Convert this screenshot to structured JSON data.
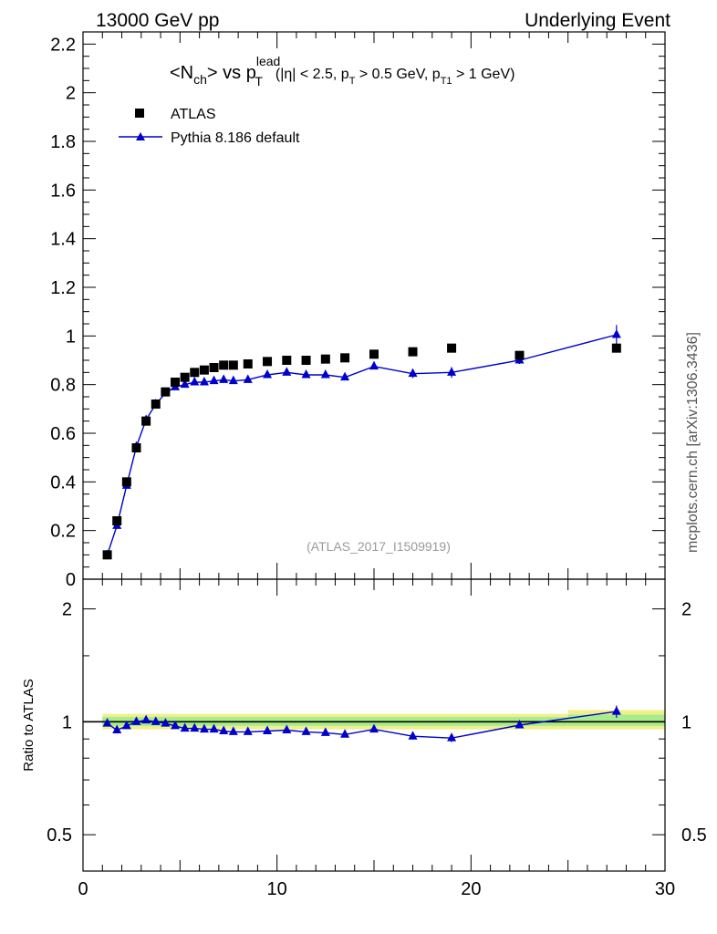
{
  "header": {
    "left_label": "13000 GeV pp",
    "right_label": "Underlying Event",
    "side_label": "mcplots.cern.ch [arXiv:1306.3436]",
    "analysis_label": "(ATLAS_2017_I1509919)"
  },
  "title": {
    "obs_open": "<N",
    "obs_sub": "ch",
    "obs_close": "> vs p",
    "pt_sup": "lead",
    "pt_sub": "T",
    "cuts_a": "(|η| < 2.5, p",
    "cuts_a_sub": "T",
    "cuts_b": " > 0.5 GeV, p",
    "cuts_b_sub": "T1",
    "cuts_c": " > 1 GeV)"
  },
  "colors": {
    "data": "#000000",
    "mc": "#0000cc",
    "band_yellow": "#f0f08a",
    "band_green": "#a8ec8c"
  },
  "chart_data": [
    {
      "type": "scatter",
      "panel": "main",
      "xlim": [
        0,
        30
      ],
      "ylim": [
        0,
        2.25
      ],
      "y_ticks": [
        0,
        0.2,
        0.4,
        0.6,
        0.8,
        1,
        1.2,
        1.4,
        1.6,
        1.8,
        2,
        2.2
      ],
      "y_tick_labels": [
        "0",
        "0.2",
        "0.4",
        "0.6",
        "0.8",
        "1",
        "1.2",
        "1.4",
        "1.6",
        "1.8",
        "2",
        "2.2"
      ],
      "legend_position": "top-left",
      "grid": false,
      "series": [
        {
          "name": "ATLAS",
          "marker": "square",
          "x": [
            1.25,
            1.75,
            2.25,
            2.75,
            3.25,
            3.75,
            4.25,
            4.75,
            5.25,
            5.75,
            6.25,
            6.75,
            7.25,
            7.75,
            8.5,
            9.5,
            10.5,
            11.5,
            12.5,
            13.5,
            15.0,
            17.0,
            19.0,
            22.5,
            27.5
          ],
          "y": [
            0.1,
            0.24,
            0.4,
            0.54,
            0.65,
            0.72,
            0.77,
            0.81,
            0.83,
            0.85,
            0.86,
            0.87,
            0.88,
            0.88,
            0.885,
            0.895,
            0.9,
            0.9,
            0.905,
            0.91,
            0.925,
            0.935,
            0.95,
            0.92,
            0.95
          ]
        },
        {
          "name": "Pythia 8.186 default",
          "marker": "triangle",
          "x": [
            1.25,
            1.75,
            2.25,
            2.75,
            3.25,
            3.75,
            4.25,
            4.75,
            5.25,
            5.75,
            6.25,
            6.75,
            7.25,
            7.75,
            8.5,
            9.5,
            10.5,
            11.5,
            12.5,
            13.5,
            15.0,
            17.0,
            19.0,
            22.5,
            27.5
          ],
          "y": [
            0.1,
            0.22,
            0.385,
            0.545,
            0.655,
            0.72,
            0.765,
            0.79,
            0.8,
            0.81,
            0.81,
            0.815,
            0.82,
            0.815,
            0.82,
            0.84,
            0.85,
            0.84,
            0.84,
            0.83,
            0.875,
            0.845,
            0.85,
            0.9,
            1.005
          ],
          "yerr": [
            0,
            0,
            0,
            0,
            0,
            0,
            0,
            0,
            0,
            0,
            0,
            0,
            0,
            0,
            0,
            0,
            0.012,
            0,
            0,
            0,
            0.012,
            0.018,
            0.022,
            0.015,
            0.04
          ]
        }
      ]
    },
    {
      "type": "scatter",
      "panel": "ratio",
      "ylabel": "Ratio to ATLAS",
      "log_y": true,
      "xlim": [
        0,
        30
      ],
      "ylim": [
        0.4,
        2.4
      ],
      "x_ticks": [
        0,
        10,
        20,
        30
      ],
      "x_tick_labels": [
        "0",
        "10",
        "20",
        "30"
      ],
      "y_ticks": [
        0.5,
        1,
        2
      ],
      "y_tick_labels": [
        "0.5",
        "1",
        "2"
      ],
      "band": {
        "x_edges": [
          1.0,
          25.0,
          30.0
        ],
        "yellow": [
          [
            0.955,
            1.05
          ],
          [
            0.955,
            1.075
          ]
        ],
        "green": [
          [
            0.975,
            1.03
          ],
          [
            0.975,
            1.045
          ]
        ]
      },
      "series": [
        {
          "name": "Pythia 8.186 default",
          "marker": "triangle",
          "x": [
            1.25,
            1.75,
            2.25,
            2.75,
            3.25,
            3.75,
            4.25,
            4.75,
            5.25,
            5.75,
            6.25,
            6.75,
            7.25,
            7.75,
            8.5,
            9.5,
            10.5,
            11.5,
            12.5,
            13.5,
            15.0,
            17.0,
            19.0,
            22.5,
            27.5
          ],
          "y": [
            0.99,
            0.95,
            0.975,
            1.0,
            1.01,
            1.0,
            0.99,
            0.975,
            0.96,
            0.96,
            0.955,
            0.955,
            0.945,
            0.94,
            0.94,
            0.945,
            0.95,
            0.94,
            0.935,
            0.925,
            0.955,
            0.915,
            0.905,
            0.98,
            1.065
          ],
          "yerr": [
            0,
            0,
            0,
            0,
            0,
            0,
            0,
            0,
            0,
            0,
            0,
            0,
            0,
            0,
            0,
            0,
            0.01,
            0,
            0,
            0,
            0.012,
            0.018,
            0.022,
            0.015,
            0.04
          ]
        }
      ]
    }
  ]
}
